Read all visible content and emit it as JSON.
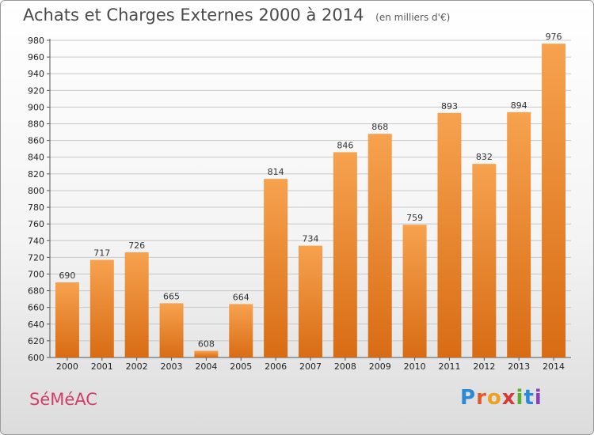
{
  "header": {
    "title": "Achats et Charges Externes 2000 à 2014",
    "subtitle": "(en milliers d'€)"
  },
  "footer": {
    "town": "SéMéAC",
    "logo_text": "Proxiti"
  },
  "colors": {
    "bar_top": "#f7a24f",
    "bar_bottom": "#d86c14",
    "town_text": "#d23d6b",
    "grid": "#c8c8c8"
  },
  "chart_data": {
    "type": "bar",
    "title": "Achats et Charges Externes 2000 à 2014",
    "subtitle": "(en milliers d'€)",
    "categories": [
      "2000",
      "2001",
      "2002",
      "2003",
      "2004",
      "2005",
      "2006",
      "2007",
      "2008",
      "2009",
      "2010",
      "2011",
      "2012",
      "2013",
      "2014"
    ],
    "values": [
      690,
      717,
      726,
      665,
      608,
      664,
      814,
      734,
      846,
      868,
      759,
      893,
      832,
      894,
      976
    ],
    "ylim": [
      600,
      980
    ],
    "ytick_step": 20,
    "grid": true,
    "xlabel": "",
    "ylabel": ""
  }
}
